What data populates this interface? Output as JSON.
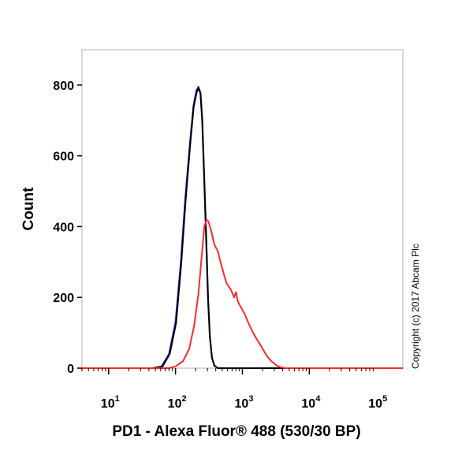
{
  "chart_data": {
    "type": "line",
    "title": "",
    "xlabel": "PD1 - Alexa Fluor® 488 (530/30 BP)",
    "ylabel": "Count",
    "x_scale": "log",
    "xlim": [
      4,
      250000
    ],
    "ylim": [
      0,
      900
    ],
    "y_ticks": [
      0,
      200,
      400,
      600,
      800
    ],
    "x_ticks": [
      {
        "base": "10",
        "exp": "1",
        "value": 10
      },
      {
        "base": "10",
        "exp": "2",
        "value": 100
      },
      {
        "base": "10",
        "exp": "3",
        "value": 1000
      },
      {
        "base": "10",
        "exp": "4",
        "value": 10000
      },
      {
        "base": "10",
        "exp": "5",
        "value": 100000
      }
    ],
    "grid": false,
    "series": [
      {
        "color": "#1f1fd6",
        "points": [
          [
            4,
            0
          ],
          [
            45,
            0
          ],
          [
            62,
            5
          ],
          [
            80,
            40
          ],
          [
            100,
            130
          ],
          [
            120,
            300
          ],
          [
            140,
            480
          ],
          [
            165,
            640
          ],
          [
            185,
            740
          ],
          [
            205,
            785
          ],
          [
            220,
            795
          ],
          [
            235,
            780
          ],
          [
            250,
            700
          ],
          [
            265,
            560
          ],
          [
            285,
            380
          ],
          [
            305,
            200
          ],
          [
            325,
            90
          ],
          [
            350,
            30
          ],
          [
            380,
            8
          ],
          [
            430,
            0
          ],
          [
            250000,
            0
          ]
        ]
      },
      {
        "color": "#000000",
        "points": [
          [
            4,
            0
          ],
          [
            45,
            0
          ],
          [
            64,
            5
          ],
          [
            82,
            40
          ],
          [
            102,
            128
          ],
          [
            122,
            298
          ],
          [
            142,
            478
          ],
          [
            167,
            638
          ],
          [
            187,
            738
          ],
          [
            207,
            780
          ],
          [
            222,
            790
          ],
          [
            237,
            776
          ],
          [
            252,
            698
          ],
          [
            267,
            558
          ],
          [
            287,
            378
          ],
          [
            307,
            198
          ],
          [
            327,
            88
          ],
          [
            352,
            28
          ],
          [
            382,
            7
          ],
          [
            430,
            0
          ],
          [
            250000,
            0
          ]
        ]
      },
      {
        "color": "#ff2a2a",
        "points": [
          [
            4,
            0
          ],
          [
            80,
            0
          ],
          [
            100,
            5
          ],
          [
            130,
            20
          ],
          [
            160,
            55
          ],
          [
            190,
            120
          ],
          [
            220,
            210
          ],
          [
            250,
            330
          ],
          [
            270,
            400
          ],
          [
            290,
            420
          ],
          [
            310,
            415
          ],
          [
            340,
            390
          ],
          [
            380,
            350
          ],
          [
            430,
            330
          ],
          [
            470,
            300
          ],
          [
            520,
            270
          ],
          [
            580,
            240
          ],
          [
            630,
            230
          ],
          [
            680,
            220
          ],
          [
            750,
            200
          ],
          [
            800,
            215
          ],
          [
            850,
            190
          ],
          [
            900,
            180
          ],
          [
            1000,
            165
          ],
          [
            1100,
            150
          ],
          [
            1250,
            125
          ],
          [
            1400,
            105
          ],
          [
            1600,
            85
          ],
          [
            1800,
            70
          ],
          [
            2000,
            55
          ],
          [
            2300,
            35
          ],
          [
            2700,
            20
          ],
          [
            3200,
            8
          ],
          [
            3800,
            2
          ],
          [
            4500,
            0
          ],
          [
            250000,
            0
          ]
        ]
      }
    ]
  },
  "copyright": "Copyright (c) 2017 Abcam Plc"
}
